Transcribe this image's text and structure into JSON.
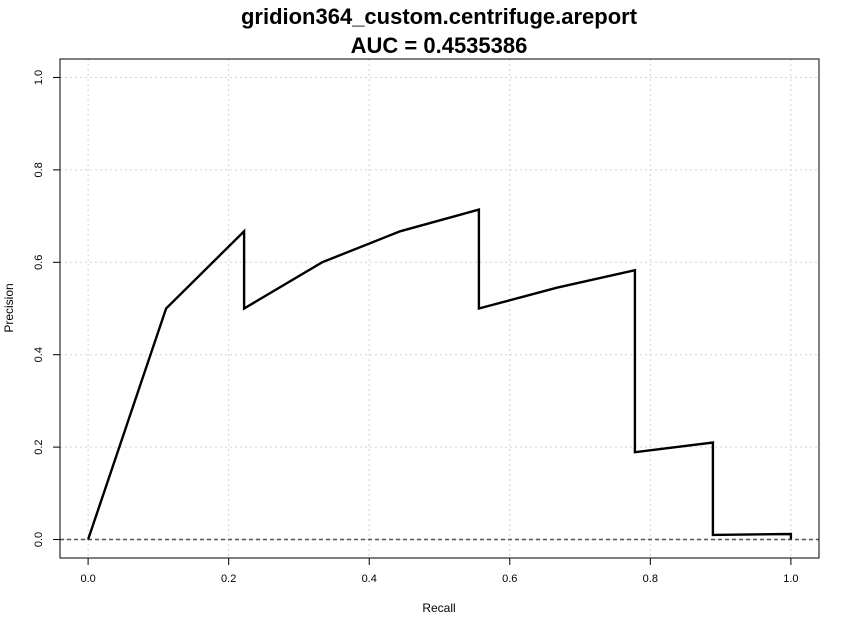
{
  "chart_data": {
    "type": "line",
    "title": "gridion364_custom.centrifuge.areport",
    "subtitle": "AUC = 0.4535386",
    "xlabel": "Recall",
    "ylabel": "Precision",
    "xlim": [
      -0.04,
      1.04
    ],
    "ylim": [
      -0.04,
      1.04
    ],
    "x_ticks": [
      0.0,
      0.2,
      0.4,
      0.6,
      0.8,
      1.0
    ],
    "y_ticks": [
      0.0,
      0.2,
      0.4,
      0.6,
      0.8,
      1.0
    ],
    "x_tick_labels": [
      "0.0",
      "0.2",
      "0.4",
      "0.6",
      "0.8",
      "1.0"
    ],
    "y_tick_labels": [
      "0.0",
      "0.2",
      "0.4",
      "0.6",
      "0.8",
      "1.0"
    ],
    "grid": true,
    "baseline_y": 0.0,
    "series": [
      {
        "points": [
          [
            0.0,
            0.0
          ],
          [
            0.111,
            0.5
          ],
          [
            0.222,
            0.667
          ],
          [
            0.222,
            0.5
          ],
          [
            0.333,
            0.6
          ],
          [
            0.444,
            0.667
          ],
          [
            0.556,
            0.714
          ],
          [
            0.556,
            0.5
          ],
          [
            0.667,
            0.545
          ],
          [
            0.778,
            0.583
          ],
          [
            0.778,
            0.189
          ],
          [
            0.889,
            0.21
          ],
          [
            0.889,
            0.01
          ],
          [
            1.0,
            0.012
          ],
          [
            1.0,
            0.0
          ]
        ]
      }
    ]
  }
}
